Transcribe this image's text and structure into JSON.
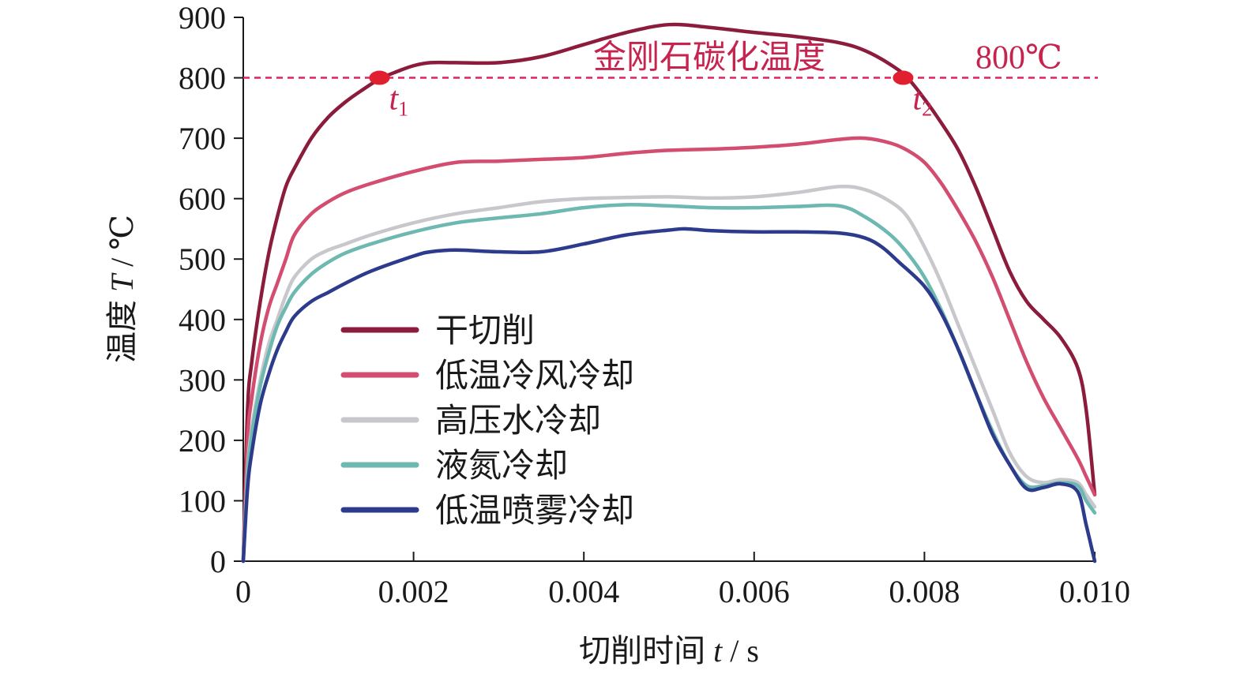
{
  "chart_data": {
    "type": "line",
    "xlabel": "切削时间",
    "xlabel_var": "t",
    "xlabel_unit": "/ s",
    "ylabel": "温度",
    "ylabel_var": "T",
    "ylabel_unit": "/ ℃",
    "xlim": [
      0,
      0.01
    ],
    "ylim": [
      0,
      900
    ],
    "x_ticks": [
      0,
      0.002,
      0.004,
      0.006,
      0.008,
      0.01
    ],
    "x_tick_labels": [
      "0",
      "0.002",
      "0.004",
      "0.006",
      "0.008",
      "0.010"
    ],
    "y_ticks": [
      0,
      100,
      200,
      300,
      400,
      500,
      600,
      700,
      800,
      900
    ],
    "y_tick_labels": [
      "0",
      "100",
      "200",
      "300",
      "400",
      "500",
      "600",
      "700",
      "800",
      "900"
    ],
    "grid": false,
    "legend_position": "lower-left",
    "reference_line": {
      "y": 800,
      "label": "金刚石碳化温度",
      "value_label": "800℃",
      "color": "#e0245e"
    },
    "markers": [
      {
        "x": 0.0016,
        "y": 800,
        "label": "t",
        "sub": "1"
      },
      {
        "x": 0.00775,
        "y": 800,
        "label": "t",
        "sub": "2"
      }
    ],
    "series": [
      {
        "name": "干切削",
        "color": "#8b1c3c",
        "x": [
          0,
          5e-05,
          0.0001,
          0.0002,
          0.0003,
          0.0004,
          0.0005,
          0.0006,
          0.0008,
          0.001,
          0.0012,
          0.0014,
          0.0016,
          0.0018,
          0.002,
          0.0022,
          0.0025,
          0.003,
          0.0035,
          0.004,
          0.0045,
          0.005,
          0.0055,
          0.006,
          0.0065,
          0.007,
          0.0073,
          0.0076,
          0.0078,
          0.008,
          0.0082,
          0.0084,
          0.0086,
          0.0088,
          0.009,
          0.0092,
          0.0094,
          0.0096,
          0.0098,
          0.0099,
          0.01
        ],
        "y": [
          0,
          250,
          330,
          430,
          510,
          570,
          620,
          650,
          700,
          735,
          760,
          780,
          798,
          810,
          820,
          825,
          825,
          825,
          835,
          855,
          875,
          888,
          883,
          875,
          868,
          858,
          845,
          822,
          800,
          765,
          725,
          680,
          620,
          550,
          480,
          430,
          400,
          370,
          320,
          250,
          110
        ]
      },
      {
        "name": "低温冷风冷却",
        "color": "#d24d70",
        "x": [
          0,
          5e-05,
          0.0001,
          0.0002,
          0.0003,
          0.0004,
          0.0005,
          0.0006,
          0.0008,
          0.001,
          0.0012,
          0.0015,
          0.002,
          0.0025,
          0.003,
          0.0035,
          0.004,
          0.0045,
          0.005,
          0.0055,
          0.006,
          0.0065,
          0.007,
          0.0073,
          0.0076,
          0.0078,
          0.008,
          0.0082,
          0.0084,
          0.0086,
          0.0088,
          0.009,
          0.0092,
          0.0094,
          0.0096,
          0.0098,
          0.0099,
          0.01
        ],
        "y": [
          0,
          200,
          270,
          360,
          420,
          460,
          500,
          540,
          575,
          595,
          610,
          625,
          645,
          660,
          662,
          665,
          668,
          675,
          680,
          682,
          685,
          690,
          698,
          700,
          692,
          680,
          660,
          625,
          580,
          530,
          470,
          400,
          330,
          270,
          220,
          170,
          140,
          110
        ]
      },
      {
        "name": "高压水冷却",
        "color": "#c8c8cc",
        "x": [
          0,
          5e-05,
          0.0001,
          0.0002,
          0.0003,
          0.0004,
          0.0005,
          0.0006,
          0.0008,
          0.001,
          0.0012,
          0.0015,
          0.002,
          0.0025,
          0.003,
          0.0035,
          0.004,
          0.0045,
          0.005,
          0.0055,
          0.006,
          0.0065,
          0.007,
          0.0073,
          0.0076,
          0.0078,
          0.008,
          0.0082,
          0.0084,
          0.0086,
          0.0088,
          0.009,
          0.0092,
          0.0094,
          0.0096,
          0.0098,
          0.0099,
          0.01
        ],
        "y": [
          0,
          150,
          220,
          300,
          360,
          400,
          440,
          470,
          500,
          515,
          525,
          540,
          560,
          575,
          585,
          595,
          600,
          602,
          603,
          601,
          603,
          610,
          620,
          615,
          595,
          570,
          520,
          460,
          390,
          320,
          250,
          180,
          140,
          130,
          135,
          130,
          110,
          90
        ]
      },
      {
        "name": "液氮冷却",
        "color": "#6db8b0",
        "x": [
          0,
          5e-05,
          0.0001,
          0.0002,
          0.0003,
          0.0004,
          0.0005,
          0.0006,
          0.0008,
          0.001,
          0.0012,
          0.0015,
          0.002,
          0.0025,
          0.003,
          0.0035,
          0.004,
          0.0045,
          0.005,
          0.0055,
          0.006,
          0.0065,
          0.007,
          0.0073,
          0.0076,
          0.0078,
          0.008,
          0.0082,
          0.0084,
          0.0086,
          0.0088,
          0.009,
          0.0092,
          0.0094,
          0.0096,
          0.0098,
          0.0099,
          0.01
        ],
        "y": [
          0,
          140,
          210,
          290,
          345,
          390,
          420,
          445,
          475,
          495,
          510,
          525,
          545,
          560,
          568,
          575,
          585,
          590,
          588,
          585,
          585,
          587,
          588,
          570,
          540,
          510,
          470,
          415,
          350,
          280,
          215,
          160,
          125,
          125,
          130,
          125,
          100,
          80
        ]
      },
      {
        "name": "低温喷雾冷却",
        "color": "#2d3b8c",
        "x": [
          0,
          5e-05,
          0.0001,
          0.0002,
          0.0003,
          0.0004,
          0.0005,
          0.0006,
          0.0008,
          0.001,
          0.0012,
          0.0015,
          0.002,
          0.0022,
          0.0025,
          0.003,
          0.0035,
          0.004,
          0.0045,
          0.005,
          0.0052,
          0.0055,
          0.006,
          0.0065,
          0.007,
          0.0073,
          0.0075,
          0.0077,
          0.008,
          0.0082,
          0.0084,
          0.0086,
          0.0088,
          0.009,
          0.0092,
          0.0094,
          0.0096,
          0.0098,
          0.0099,
          0.01
        ],
        "y": [
          0,
          120,
          180,
          260,
          310,
          350,
          380,
          405,
          430,
          445,
          460,
          480,
          505,
          512,
          515,
          512,
          512,
          525,
          540,
          548,
          550,
          547,
          545,
          545,
          543,
          535,
          520,
          495,
          455,
          410,
          350,
          280,
          210,
          160,
          120,
          122,
          128,
          115,
          60,
          0
        ]
      }
    ]
  }
}
